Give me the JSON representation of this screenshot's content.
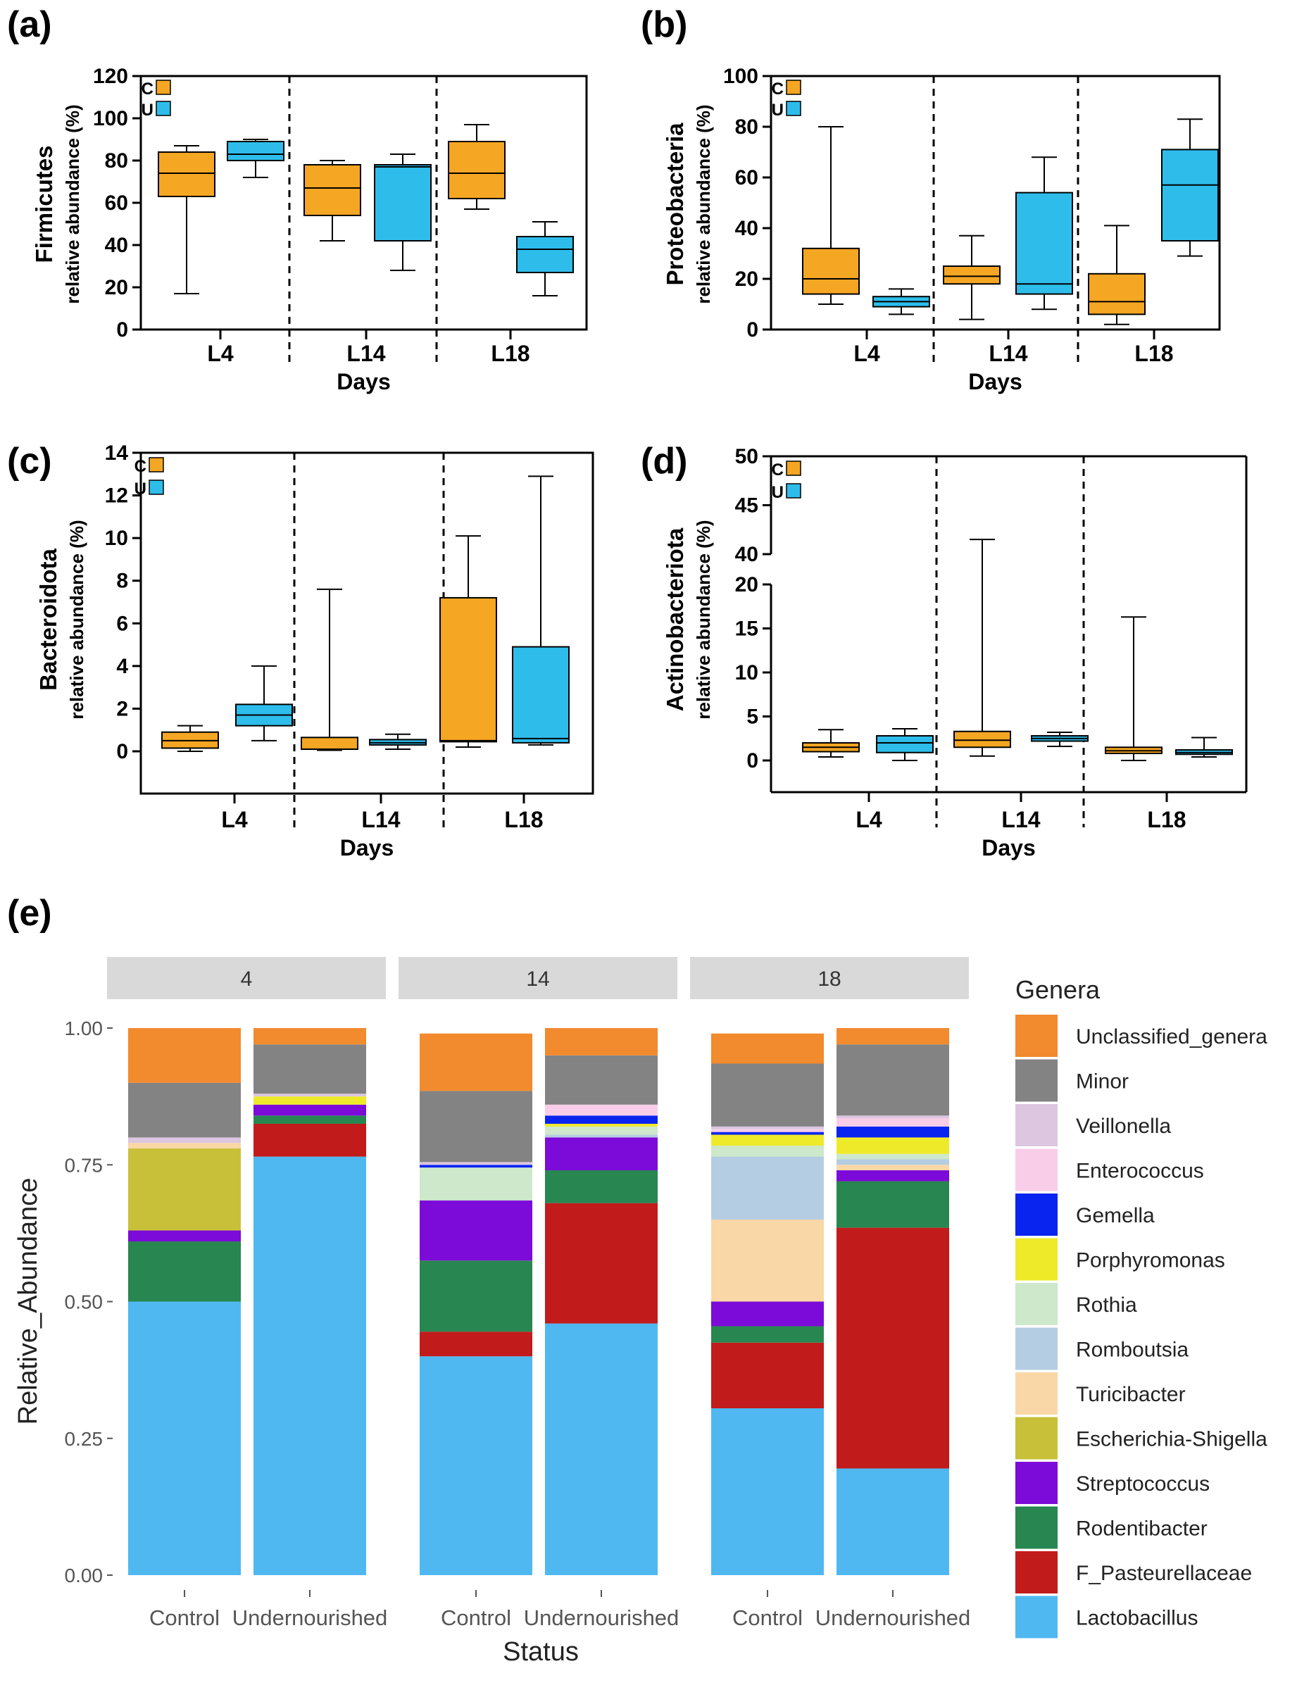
{
  "colors": {
    "control": "#F5A623",
    "undernourished": "#2EBDEB"
  },
  "chart_data": [
    {
      "type": "box",
      "panel": "(a)",
      "ylabel_main": "Firmicutes",
      "ylabel_sub": "relative abundance (%)",
      "xlabel": "Days",
      "ylim": [
        0,
        120
      ],
      "yticks": [
        0,
        20,
        40,
        60,
        80,
        100,
        120
      ],
      "categories": [
        "L4",
        "L14",
        "L18"
      ],
      "legend": [
        "C",
        "U"
      ],
      "boxes": [
        {
          "day": "L4",
          "group": "C",
          "min": 17,
          "q1": 63,
          "median": 74,
          "q3": 84,
          "max": 87
        },
        {
          "day": "L4",
          "group": "U",
          "min": 72,
          "q1": 80,
          "median": 83,
          "q3": 89,
          "max": 90
        },
        {
          "day": "L14",
          "group": "C",
          "min": 42,
          "q1": 54,
          "median": 67,
          "q3": 78,
          "max": 80
        },
        {
          "day": "L14",
          "group": "U",
          "min": 28,
          "q1": 42,
          "median": 77,
          "q3": 78,
          "max": 83
        },
        {
          "day": "L18",
          "group": "C",
          "min": 57,
          "q1": 62,
          "median": 74,
          "q3": 89,
          "max": 97
        },
        {
          "day": "L18",
          "group": "U",
          "min": 16,
          "q1": 27,
          "median": 38,
          "q3": 44,
          "max": 51
        }
      ]
    },
    {
      "type": "box",
      "panel": "(b)",
      "ylabel_main": "Proteobacteria",
      "ylabel_sub": "relative abundance (%)",
      "xlabel": "Days",
      "ylim": [
        0,
        100
      ],
      "yticks": [
        0,
        20,
        40,
        60,
        80,
        100
      ],
      "categories": [
        "L4",
        "L14",
        "L18"
      ],
      "legend": [
        "C",
        "U"
      ],
      "boxes": [
        {
          "day": "L4",
          "group": "C",
          "min": 10,
          "q1": 14,
          "median": 20,
          "q3": 32,
          "max": 80
        },
        {
          "day": "L4",
          "group": "U",
          "min": 6,
          "q1": 9,
          "median": 11,
          "q3": 13,
          "max": 16
        },
        {
          "day": "L14",
          "group": "C",
          "min": 4,
          "q1": 18,
          "median": 21,
          "q3": 25,
          "max": 37
        },
        {
          "day": "L14",
          "group": "U",
          "min": 8,
          "q1": 14,
          "median": 18,
          "q3": 54,
          "max": 68
        },
        {
          "day": "L18",
          "group": "C",
          "min": 2,
          "q1": 6,
          "median": 11,
          "q3": 22,
          "max": 41
        },
        {
          "day": "L18",
          "group": "U",
          "min": 29,
          "q1": 35,
          "median": 57,
          "q3": 71,
          "max": 83
        }
      ]
    },
    {
      "type": "box",
      "panel": "(c)",
      "ylabel_main": "Bacteroidota",
      "ylabel_sub": "relative abundance (%)",
      "xlabel": "Days",
      "ylim": [
        -2,
        14
      ],
      "yticks": [
        0,
        2,
        4,
        6,
        8,
        10,
        12,
        14
      ],
      "categories": [
        "L4",
        "L14",
        "L18"
      ],
      "legend": [
        "C",
        "U"
      ],
      "boxes": [
        {
          "day": "L4",
          "group": "C",
          "min": 0.0,
          "q1": 0.15,
          "median": 0.5,
          "q3": 0.9,
          "max": 1.2
        },
        {
          "day": "L4",
          "group": "U",
          "min": 0.5,
          "q1": 1.2,
          "median": 1.7,
          "q3": 2.2,
          "max": 4.0
        },
        {
          "day": "L14",
          "group": "C",
          "min": 0.05,
          "q1": 0.1,
          "median": 0.1,
          "q3": 0.65,
          "max": 7.6
        },
        {
          "day": "L14",
          "group": "U",
          "min": 0.1,
          "q1": 0.3,
          "median": 0.4,
          "q3": 0.55,
          "max": 0.8
        },
        {
          "day": "L18",
          "group": "C",
          "min": 0.2,
          "q1": 0.45,
          "median": 0.5,
          "q3": 7.2,
          "max": 10.1
        },
        {
          "day": "L18",
          "group": "U",
          "min": 0.3,
          "q1": 0.4,
          "median": 0.6,
          "q3": 4.9,
          "max": 12.9
        }
      ]
    },
    {
      "type": "box",
      "panel": "(d)",
      "ylabel_main": "Actinobacteriota",
      "ylabel_sub": "relative abundance (%)",
      "xlabel": "Days",
      "ylim_lower": [
        -4,
        20
      ],
      "ylim_upper": [
        40,
        50
      ],
      "axis_break": [
        20,
        40
      ],
      "yticks": [
        0,
        5,
        10,
        15,
        20,
        40,
        45,
        50
      ],
      "categories": [
        "L4",
        "L14",
        "L18"
      ],
      "legend": [
        "C",
        "U"
      ],
      "boxes": [
        {
          "day": "L4",
          "group": "C",
          "min": 0.4,
          "q1": 1.0,
          "median": 1.5,
          "q3": 2.0,
          "max": 3.5
        },
        {
          "day": "L4",
          "group": "U",
          "min": 0.0,
          "q1": 0.9,
          "median": 2.0,
          "q3": 2.8,
          "max": 3.6
        },
        {
          "day": "L14",
          "group": "C",
          "min": 0.5,
          "q1": 1.5,
          "median": 2.3,
          "q3": 3.3,
          "max": 41.5
        },
        {
          "day": "L14",
          "group": "U",
          "min": 1.6,
          "q1": 2.2,
          "median": 2.5,
          "q3": 2.8,
          "max": 3.2
        },
        {
          "day": "L18",
          "group": "C",
          "min": 0.0,
          "q1": 0.8,
          "median": 1.1,
          "q3": 1.5,
          "max": 16.3
        },
        {
          "day": "L18",
          "group": "U",
          "min": 0.4,
          "q1": 0.7,
          "median": 0.9,
          "q3": 1.2,
          "max": 2.6
        }
      ]
    },
    {
      "type": "stacked_bar",
      "panel": "(e)",
      "xlabel": "Status",
      "ylabel": "Relative_Abundance",
      "ylim": [
        0,
        1
      ],
      "yticks": [
        "0.00",
        "0.25",
        "0.50",
        "0.75",
        "1.00"
      ],
      "facets": [
        "4",
        "14",
        "18"
      ],
      "categories": [
        "Control",
        "Undernourished"
      ],
      "legend_title": "Genera",
      "genera": [
        {
          "name": "Unclassified_genera",
          "color": "#F28A2E"
        },
        {
          "name": "Minor",
          "color": "#838383"
        },
        {
          "name": "Veillonella",
          "color": "#DCC6E0"
        },
        {
          "name": "Enterococcus",
          "color": "#F9CDE8"
        },
        {
          "name": "Gemella",
          "color": "#0A24F0"
        },
        {
          "name": "Porphyromonas",
          "color": "#EEEA2A"
        },
        {
          "name": "Rothia",
          "color": "#CDE8CB"
        },
        {
          "name": "Romboutsia",
          "color": "#B4CDE2"
        },
        {
          "name": "Turicibacter",
          "color": "#F9D7A6"
        },
        {
          "name": "Escherichia-Shigella",
          "color": "#C9C03A"
        },
        {
          "name": "Streptococcus",
          "color": "#7C0AD8"
        },
        {
          "name": "Rodentibacter",
          "color": "#288650"
        },
        {
          "name": "F_Pasteurellaceae",
          "color": "#C21B1B"
        },
        {
          "name": "Lactobacillus",
          "color": "#50B8F0"
        }
      ],
      "stack_order": [
        "Lactobacillus",
        "F_Pasteurellaceae",
        "Rodentibacter",
        "Streptococcus",
        "Escherichia-Shigella",
        "Turicibacter",
        "Romboutsia",
        "Rothia",
        "Porphyromonas",
        "Gemella",
        "Enterococcus",
        "Veillonella",
        "Minor",
        "Unclassified_genera"
      ],
      "bars": [
        {
          "facet": "4",
          "status": "Control",
          "values": [
            0.5,
            0.0,
            0.11,
            0.02,
            0.15,
            0.01,
            0.0,
            0.0,
            0.0,
            0.0,
            0.0,
            0.01,
            0.1,
            0.1
          ]
        },
        {
          "facet": "4",
          "status": "Undernourished",
          "values": [
            0.765,
            0.06,
            0.015,
            0.02,
            0.0,
            0.0,
            0.0,
            0.0,
            0.015,
            0.0,
            0.0,
            0.005,
            0.09,
            0.03
          ]
        },
        {
          "facet": "14",
          "status": "Control",
          "values": [
            0.4,
            0.045,
            0.13,
            0.11,
            0.0,
            0.0,
            0.0,
            0.06,
            0.0,
            0.005,
            0.0,
            0.005,
            0.13,
            0.105
          ]
        },
        {
          "facet": "14",
          "status": "Undernourished",
          "values": [
            0.46,
            0.22,
            0.06,
            0.06,
            0.0,
            0.0,
            0.005,
            0.015,
            0.005,
            0.015,
            0.02,
            0.0,
            0.09,
            0.05
          ]
        },
        {
          "facet": "18",
          "status": "Control",
          "values": [
            0.305,
            0.12,
            0.03,
            0.045,
            0.0,
            0.15,
            0.115,
            0.02,
            0.02,
            0.005,
            0.005,
            0.005,
            0.115,
            0.055
          ]
        },
        {
          "facet": "18",
          "status": "Undernourished",
          "values": [
            0.195,
            0.44,
            0.085,
            0.02,
            0.0,
            0.01,
            0.01,
            0.01,
            0.03,
            0.02,
            0.015,
            0.005,
            0.13,
            0.03
          ]
        }
      ]
    }
  ]
}
